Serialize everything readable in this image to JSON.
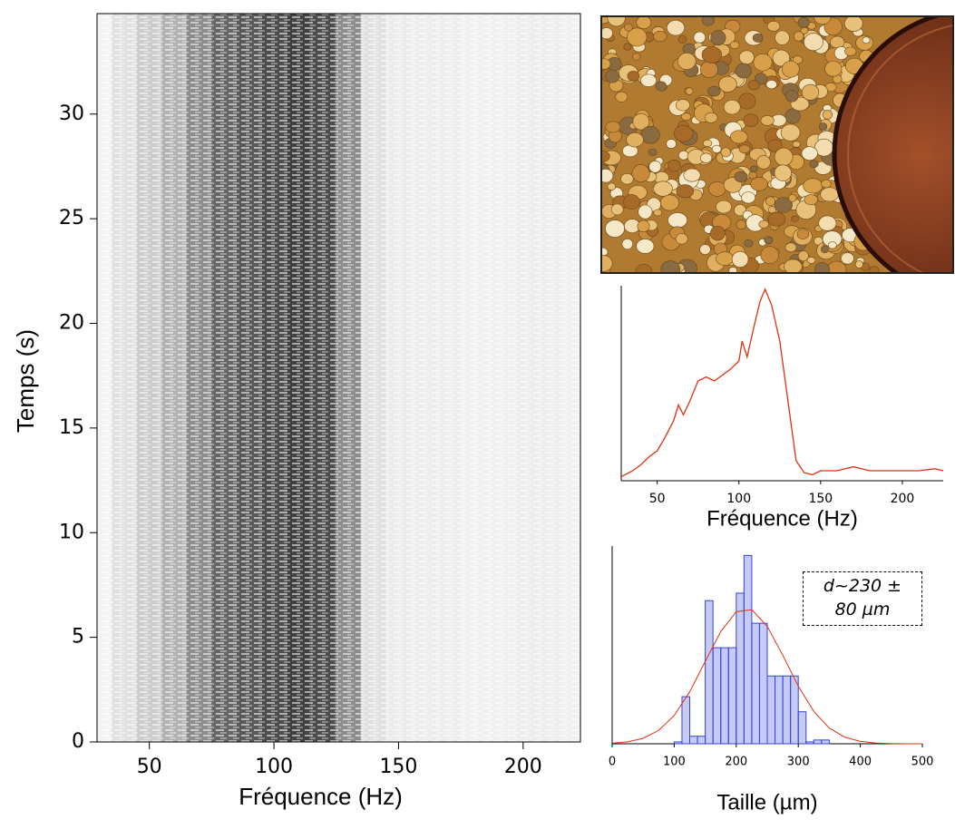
{
  "chart_data": [
    {
      "type": "heatmap",
      "x_label": "Fréquence (Hz)",
      "y_label": "Temps (s)",
      "x": [
        30,
        40,
        50,
        60,
        70,
        80,
        90,
        100,
        110,
        120,
        130,
        140,
        150,
        160,
        170,
        180,
        190,
        200,
        210,
        220
      ],
      "values": [
        0.05,
        0.12,
        0.2,
        0.3,
        0.45,
        0.6,
        0.65,
        0.7,
        0.75,
        0.7,
        0.45,
        0.12,
        0.08,
        0.07,
        0.07,
        0.06,
        0.06,
        0.07,
        0.07,
        0.06
      ],
      "color": "#000000",
      "xlim": [
        29,
        223
      ],
      "ylim": [
        0,
        34.8
      ],
      "xticks": [
        50,
        100,
        150,
        200
      ],
      "yticks": [
        0,
        5,
        10,
        15,
        20,
        25,
        30
      ]
    },
    {
      "type": "line",
      "x_label": "Fréquence (Hz)",
      "x": [
        28,
        35,
        40,
        45,
        50,
        55,
        60,
        63,
        66,
        70,
        75,
        80,
        85,
        90,
        95,
        100,
        102,
        105,
        110,
        113,
        116,
        120,
        125,
        130,
        135,
        140,
        145,
        150,
        160,
        170,
        180,
        190,
        200,
        210,
        220,
        225
      ],
      "values": [
        0.02,
        0.05,
        0.08,
        0.12,
        0.15,
        0.22,
        0.3,
        0.38,
        0.33,
        0.4,
        0.5,
        0.52,
        0.5,
        0.53,
        0.56,
        0.6,
        0.7,
        0.62,
        0.8,
        0.9,
        0.96,
        0.88,
        0.7,
        0.4,
        0.1,
        0.04,
        0.03,
        0.05,
        0.05,
        0.07,
        0.05,
        0.05,
        0.05,
        0.05,
        0.06,
        0.05
      ],
      "color": "#e03010",
      "xlim": [
        28,
        225
      ],
      "ylim": [
        0,
        1
      ],
      "xticks": [
        50,
        100,
        150,
        200
      ]
    },
    {
      "type": "histogram",
      "x_label": "Taille (µm)",
      "annotation": "d~230 ± 80 µm",
      "bins": [
        100,
        112.5,
        125,
        137.5,
        150,
        162.5,
        175,
        187.5,
        200,
        212.5,
        225,
        237.5,
        250,
        262.5,
        275,
        287.5,
        300,
        312.5,
        325,
        337.5,
        350
      ],
      "counts": [
        0.01,
        0.25,
        0.04,
        0.04,
        0.76,
        0.51,
        0.51,
        0.51,
        0.8,
        1.0,
        0.64,
        0.64,
        0.36,
        0.36,
        0.36,
        0.36,
        0.17,
        0.01,
        0.02,
        0.02
      ],
      "color": "#3344dd",
      "fit": {
        "color": "#e03010",
        "x": [
          0,
          25,
          50,
          75,
          100,
          125,
          150,
          175,
          200,
          225,
          250,
          275,
          300,
          325,
          350,
          375,
          400,
          425,
          450,
          475,
          500
        ],
        "values": [
          0.003,
          0.01,
          0.029,
          0.071,
          0.15,
          0.276,
          0.437,
          0.596,
          0.701,
          0.712,
          0.623,
          0.47,
          0.306,
          0.172,
          0.083,
          0.035,
          0.0125,
          0.0039,
          0.001,
          0.0002,
          5e-05
        ]
      },
      "xlim": [
        0,
        500
      ],
      "ylim": [
        0,
        1.05
      ],
      "xticks": [
        0,
        100,
        200,
        300,
        400,
        500
      ]
    }
  ]
}
